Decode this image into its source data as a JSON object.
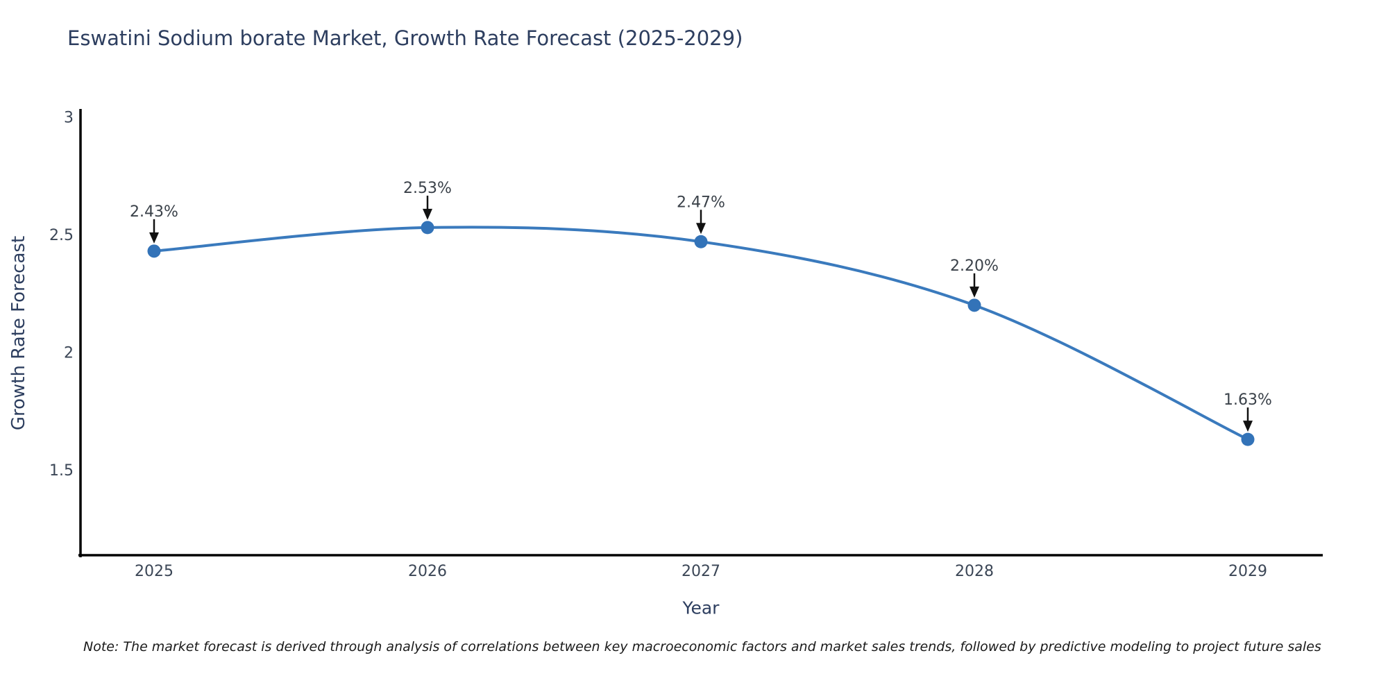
{
  "title": "Eswatini Sodium borate Market, Growth Rate Forecast (2025-2029)",
  "note": "Note: The market forecast is derived through analysis of correlations between key macroeconomic factors and market sales trends, followed by predictive modeling to project future sales",
  "colors": {
    "background": "#ffffff",
    "title_text": "#2d3e5f",
    "tick_text": "#3b4656",
    "annotation_text": "#3a4149",
    "note_text": "#1a1a1a",
    "line": "#3a7abd",
    "marker": "#3373b8",
    "arrow": "#111111",
    "axis": "#000000"
  },
  "chart_data": {
    "type": "line",
    "title": "Eswatini Sodium borate Market, Growth Rate Forecast (2025-2029)",
    "x": [
      2025,
      2026,
      2027,
      2028,
      2029
    ],
    "series": [
      {
        "name": "Growth Rate Forecast",
        "values": [
          2.43,
          2.53,
          2.47,
          2.2,
          1.63
        ]
      }
    ],
    "point_labels": [
      "2.43%",
      "2.53%",
      "2.47%",
      "2.20%",
      "1.63%"
    ],
    "xlabel": "Year",
    "ylabel": "Growth Rate Forecast",
    "yticks": [
      1.5,
      2,
      2.5,
      3
    ],
    "ytick_labels": [
      "1.5",
      "2",
      "2.5",
      "3"
    ],
    "ylim": [
      1.135,
      3.031
    ],
    "grid": false,
    "legend": false,
    "marker": "circle",
    "smooth": true,
    "annotation_arrows": true
  }
}
